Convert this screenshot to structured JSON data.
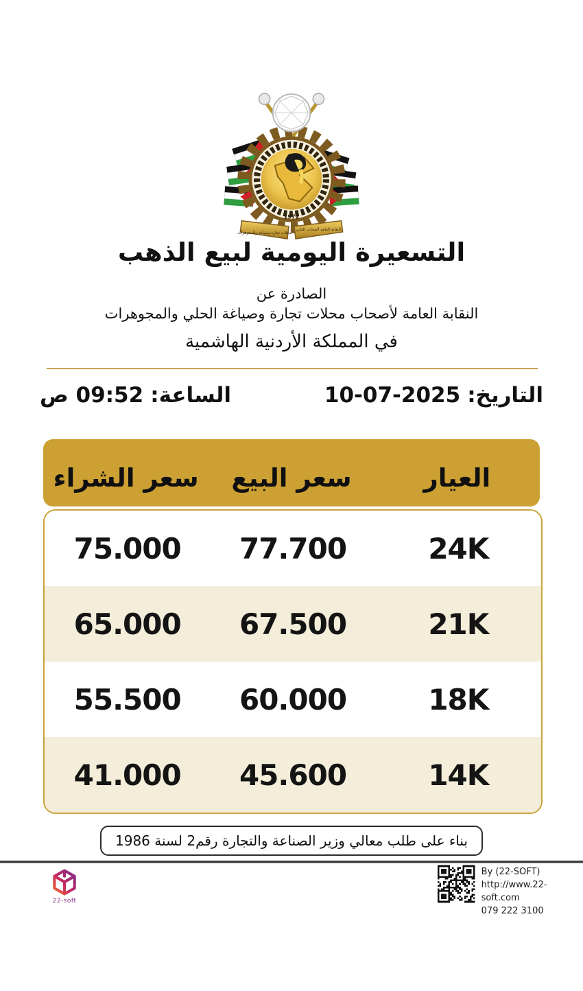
{
  "logo": {
    "ribbon_right": "النقابة العامة لأصحاب الحلي",
    "ribbon_left": "محلات تجارة وصياغة والمجوهرات",
    "est": "1972"
  },
  "header": {
    "title": "التسعيرة اليومية لبيع الذهب",
    "issued_line1": "الصادرة عن",
    "issued_line2": "النقابة العامة لأصحاب محلات تجارة وصياغة الحلي  والمجوهرات",
    "issued_line3": "في المملكة الأردنية الهاشمية"
  },
  "datetime": {
    "date_label": "التاريخ:",
    "date_value": "10-07-2025",
    "time_label": "الساعة:",
    "time_value": "09:52 ص"
  },
  "table": {
    "columns": [
      "العيار",
      "سعر البيع",
      "سعر الشراء"
    ],
    "rows": [
      {
        "karat": "24K",
        "sell": "77.700",
        "buy": "75.000"
      },
      {
        "karat": "21K",
        "sell": "67.500",
        "buy": "65.000"
      },
      {
        "karat": "18K",
        "sell": "60.000",
        "buy": "55.500"
      },
      {
        "karat": "14K",
        "sell": "45.600",
        "buy": "41.000"
      }
    ]
  },
  "note": "بناء على طلب معالي وزير الصناعة والتجارة رقم2 لسنة 1986",
  "footer": {
    "brand": "22-soft",
    "by": "By (22-SOFT)",
    "url": "http://www.22-soft.com",
    "phone": "079 222 3100"
  },
  "colors": {
    "gold_header": "#cca032",
    "row_beige": "#f3edd9",
    "table_border": "#c9a43c",
    "divider_gold": "#c8a254",
    "gear_brown": "#7d5a1f",
    "map_gold": "#e8b93a"
  }
}
